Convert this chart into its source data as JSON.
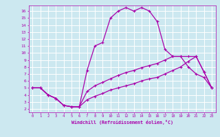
{
  "xlabel": "Windchill (Refroidissement éolien,°C)",
  "bg_color": "#cce8f0",
  "grid_color": "#ffffff",
  "line_color": "#aa00aa",
  "xlim": [
    -0.5,
    23.5
  ],
  "ylim": [
    1.5,
    16.8
  ],
  "xticks": [
    0,
    1,
    2,
    3,
    4,
    5,
    6,
    7,
    8,
    9,
    10,
    11,
    12,
    13,
    14,
    15,
    16,
    17,
    18,
    19,
    20,
    21,
    22,
    23
  ],
  "yticks": [
    2,
    3,
    4,
    5,
    6,
    7,
    8,
    9,
    10,
    11,
    12,
    13,
    14,
    15,
    16
  ],
  "curve1_x": [
    0,
    1,
    2,
    3,
    4,
    5,
    6,
    7,
    8,
    9,
    10,
    11,
    12,
    13,
    14,
    15,
    16,
    17,
    18,
    19,
    20,
    21,
    22,
    23
  ],
  "curve1_y": [
    5,
    5,
    4,
    3.5,
    2.5,
    2.3,
    2.3,
    7.5,
    11,
    11.5,
    15,
    16,
    16.5,
    16,
    16.5,
    16,
    14.5,
    10.5,
    9.5,
    9.5,
    8,
    7,
    6.5,
    5
  ],
  "curve2_x": [
    0,
    1,
    2,
    3,
    4,
    5,
    6,
    7,
    8,
    9,
    10,
    11,
    12,
    13,
    14,
    15,
    16,
    17,
    18,
    19,
    20,
    21,
    22,
    23
  ],
  "curve2_y": [
    5,
    5,
    4,
    3.5,
    2.5,
    2.3,
    2.3,
    3.3,
    3.8,
    4.2,
    4.7,
    5.0,
    5.3,
    5.6,
    6.0,
    6.3,
    6.5,
    7.0,
    7.5,
    8.0,
    8.8,
    9.5,
    7.3,
    5
  ],
  "curve3_x": [
    0,
    1,
    2,
    3,
    4,
    5,
    6,
    7,
    8,
    9,
    10,
    11,
    12,
    13,
    14,
    15,
    16,
    17,
    18,
    19,
    20,
    21,
    22,
    23
  ],
  "curve3_y": [
    5,
    5,
    4,
    3.5,
    2.5,
    2.3,
    2.3,
    4.5,
    5.3,
    5.8,
    6.3,
    6.8,
    7.2,
    7.5,
    7.9,
    8.2,
    8.5,
    9.0,
    9.5,
    9.5,
    9.5,
    9.5,
    7.3,
    5
  ]
}
